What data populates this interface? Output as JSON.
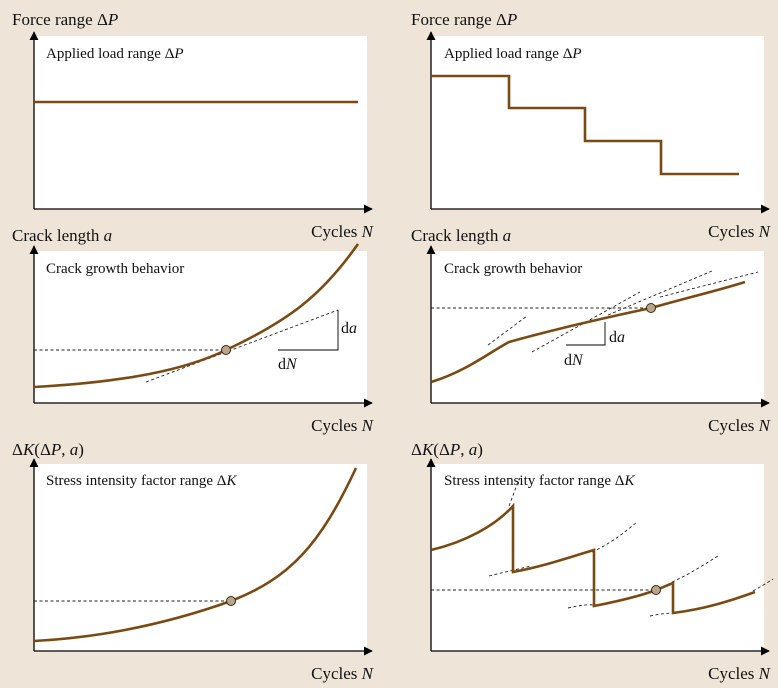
{
  "colors": {
    "background": "#efe4d8",
    "curve": "#7a4a12",
    "marker": "#b8a58c",
    "plot_background": "#ffffff"
  },
  "panels": {
    "force_constant": {
      "ylabel_text": "Force range Δ",
      "ylabel_var": "P",
      "inner_text": "Applied load range Δ",
      "inner_var": "P",
      "xlabel_text": "Cycles ",
      "xlabel_var": "N"
    },
    "force_step": {
      "ylabel_text": "Force range Δ",
      "ylabel_var": "P",
      "inner_text": "Applied load range Δ",
      "inner_var": "P",
      "xlabel_text": "Cycles ",
      "xlabel_var": "N"
    },
    "crack_constant": {
      "ylabel_text": "Crack length ",
      "ylabel_var": "a",
      "inner_text": "Crack growth behavior",
      "xlabel_text": "Cycles ",
      "xlabel_var": "N",
      "da_text": "d",
      "da_var": "a",
      "dN_text": "d",
      "dN_var": "N"
    },
    "crack_step": {
      "ylabel_text": "Crack length ",
      "ylabel_var": "a",
      "inner_text": "Crack growth behavior",
      "xlabel_text": "Cycles ",
      "xlabel_var": "N",
      "da_text": "d",
      "da_var": "a",
      "dN_text": "d",
      "dN_var": "N"
    },
    "sif_constant": {
      "ylabel_pre": "Δ",
      "ylabel_var": "K",
      "ylabel_post": "(Δ",
      "ylabel_var2": "P",
      "ylabel_mid": ", ",
      "ylabel_var3": "a",
      "ylabel_end": ")",
      "inner_text": "Stress intensity factor range Δ",
      "inner_var": "K",
      "xlabel_text": "Cycles ",
      "xlabel_var": "N"
    },
    "sif_step": {
      "ylabel_pre": "Δ",
      "ylabel_var": "K",
      "ylabel_post": "(Δ",
      "ylabel_var2": "P",
      "ylabel_mid": ", ",
      "ylabel_var3": "a",
      "ylabel_end": ")",
      "inner_text": "Stress intensity factor range Δ",
      "inner_var": "K",
      "xlabel_text": "Cycles ",
      "xlabel_var": "N"
    }
  }
}
